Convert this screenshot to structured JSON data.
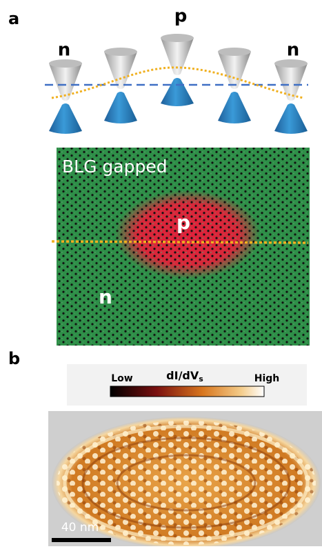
{
  "panel_a": {
    "label": "a",
    "band_labels": [
      "n",
      "p",
      "n"
    ],
    "lattice_label": "BLG gapped",
    "region_p": "p",
    "region_n": "n"
  },
  "panel_b": {
    "label": "b",
    "colorbar": {
      "low": "Low",
      "title": "dI/dV",
      "title_subscript": "s",
      "high": "High"
    },
    "scale_bar": "40 nm"
  }
}
